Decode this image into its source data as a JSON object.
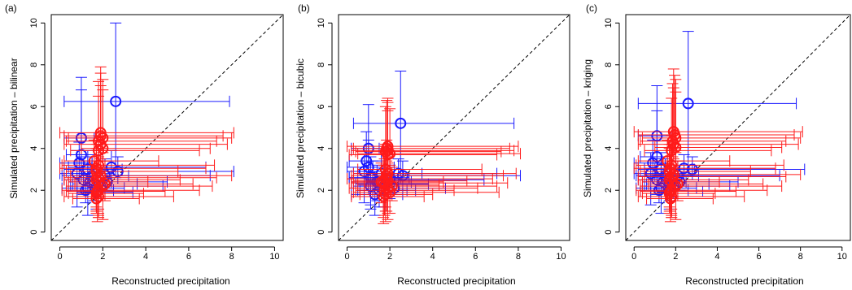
{
  "colors": {
    "blue": "#1a1aff",
    "red": "#ff1a1a",
    "axis": "#000000",
    "identity": "#000000"
  },
  "chart_data": [
    {
      "type": "scatter",
      "panel_label": "(a)",
      "xlabel": "Reconstructed precipitation",
      "ylabel": "Simulated precipitation – bilinear",
      "xlim": [
        0,
        10
      ],
      "ylim": [
        0,
        10
      ],
      "xticks": [
        "0",
        "2",
        "4",
        "6",
        "8",
        "10"
      ],
      "yticks": [
        "0",
        "2",
        "4",
        "6",
        "8",
        "10"
      ],
      "identity_line": true,
      "series": [
        {
          "color": "blue",
          "points": [
            [
              2.6,
              6.25,
              0.2,
              7.9,
              2.6,
              10.0
            ],
            [
              1.0,
              4.5,
              0.2,
              1.6,
              3.6,
              6.8
            ],
            [
              1.0,
              3.7,
              0.3,
              2.0,
              2.8,
              7.4
            ],
            [
              0.9,
              3.3,
              0.0,
              1.5,
              2.6,
              4.3
            ],
            [
              2.4,
              3.1,
              0.4,
              6.8,
              2.3,
              3.9
            ],
            [
              2.7,
              2.9,
              1.0,
              8.1,
              2.3,
              3.6
            ],
            [
              1.3,
              3.0,
              0.2,
              2.9,
              2.1,
              3.9
            ],
            [
              1.5,
              2.7,
              0.1,
              3.2,
              2.0,
              3.6
            ],
            [
              1.1,
              2.5,
              0.2,
              2.2,
              1.8,
              3.3
            ],
            [
              1.4,
              2.4,
              0.4,
              2.4,
              1.9,
              3.0
            ],
            [
              1.6,
              2.3,
              0.6,
              3.6,
              1.5,
              3.1
            ],
            [
              2.2,
              2.4,
              1.1,
              5.0,
              2.0,
              2.8
            ],
            [
              1.9,
              2.2,
              0.5,
              4.8,
              1.6,
              2.7
            ],
            [
              1.2,
              2.0,
              0.3,
              2.5,
              1.4,
              2.6
            ],
            [
              0.8,
              2.8,
              0.0,
              2.0,
              1.2,
              3.9
            ],
            [
              1.7,
              1.9,
              0.8,
              3.4,
              1.1,
              2.6
            ],
            [
              2.1,
              2.7,
              1.0,
              7.0,
              1.6,
              3.5
            ],
            [
              1.3,
              2.1,
              0.1,
              3.0,
              0.8,
              3.4
            ]
          ]
        },
        {
          "color": "red",
          "points": [
            [
              1.9,
              4.75,
              0.0,
              8.1,
              4.3,
              7.9
            ],
            [
              1.9,
              4.6,
              0.2,
              7.6,
              4.0,
              7.6
            ],
            [
              2.0,
              4.5,
              0.4,
              8.0,
              3.9,
              7.3
            ],
            [
              1.8,
              4.35,
              0.3,
              7.3,
              3.6,
              7.2
            ],
            [
              1.9,
              4.2,
              0.2,
              7.8,
              3.5,
              7.0
            ],
            [
              2.0,
              4.0,
              1.0,
              7.0,
              3.4,
              6.8
            ],
            [
              1.8,
              3.9,
              0.5,
              6.5,
              3.2,
              6.5
            ],
            [
              1.8,
              3.2,
              0.1,
              7.2,
              1.1,
              4.6
            ],
            [
              1.7,
              3.05,
              0.0,
              6.8,
              1.0,
              4.4
            ],
            [
              1.7,
              2.9,
              0.3,
              5.5,
              1.2,
              4.2
            ],
            [
              1.8,
              2.6,
              0.2,
              7.3,
              0.8,
              4.2
            ],
            [
              1.7,
              2.5,
              0.2,
              5.6,
              1.0,
              4.0
            ],
            [
              1.8,
              2.4,
              0.4,
              4.1,
              0.7,
              3.9
            ],
            [
              2.0,
              2.2,
              0.3,
              7.1,
              0.6,
              3.8
            ],
            [
              1.8,
              2.0,
              0.1,
              6.5,
              0.7,
              3.9
            ],
            [
              1.7,
              1.85,
              0.4,
              3.9,
              0.9,
              3.1
            ],
            [
              1.8,
              1.7,
              0.2,
              5.3,
              0.9,
              2.8
            ],
            [
              1.7,
              1.6,
              0.6,
              3.7,
              1.0,
              2.5
            ],
            [
              1.9,
              2.7,
              0.5,
              8.0,
              1.7,
              3.9
            ],
            [
              2.1,
              2.3,
              0.7,
              6.2,
              1.5,
              3.4
            ],
            [
              1.6,
              3.4,
              0.2,
              4.6,
              2.1,
              4.4
            ],
            [
              1.75,
              1.95,
              0.3,
              4.9,
              0.5,
              3.6
            ]
          ]
        }
      ]
    },
    {
      "type": "scatter",
      "panel_label": "(b)",
      "xlabel": "Reconstructed precipitation",
      "ylabel": "Simulated precipitation – bicubic",
      "xlim": [
        0,
        10
      ],
      "ylim": [
        0,
        10
      ],
      "xticks": [
        "0",
        "2",
        "4",
        "6",
        "8",
        "10"
      ],
      "yticks": [
        "0",
        "2",
        "4",
        "6",
        "8",
        "10"
      ],
      "identity_line": true,
      "series": [
        {
          "color": "blue",
          "points": [
            [
              2.5,
              5.2,
              0.3,
              7.8,
              2.7,
              7.7
            ],
            [
              1.0,
              4.0,
              0.2,
              1.5,
              2.4,
              6.1
            ],
            [
              0.9,
              3.4,
              0.1,
              1.8,
              2.2,
              4.8
            ],
            [
              1.0,
              3.1,
              0.0,
              2.2,
              2.0,
              4.4
            ],
            [
              1.6,
              2.8,
              0.3,
              3.5,
              1.8,
              4.0
            ],
            [
              2.6,
              2.7,
              0.8,
              8.1,
              2.0,
              3.4
            ],
            [
              2.4,
              2.8,
              0.5,
              7.0,
              2.0,
              3.5
            ],
            [
              1.2,
              2.6,
              0.1,
              2.9,
              1.7,
              3.4
            ],
            [
              1.4,
              2.4,
              0.2,
              3.0,
              1.5,
              3.2
            ],
            [
              1.1,
              2.2,
              0.3,
              2.4,
              1.3,
              3.0
            ],
            [
              2.2,
              2.1,
              1.0,
              4.6,
              1.7,
              2.6
            ],
            [
              1.8,
              2.3,
              0.4,
              3.8,
              1.0,
              3.2
            ],
            [
              1.5,
              2.0,
              0.6,
              2.8,
              1.2,
              2.6
            ],
            [
              1.3,
              1.8,
              0.2,
              2.6,
              0.8,
              2.9
            ],
            [
              2.0,
              2.5,
              0.9,
              6.4,
              1.6,
              3.2
            ],
            [
              0.8,
              2.9,
              0.0,
              1.9,
              1.4,
              3.7
            ],
            [
              1.7,
              2.0,
              0.5,
              3.2,
              1.2,
              2.8
            ],
            [
              1.1,
              2.6,
              0.1,
              2.5,
              1.1,
              3.6
            ]
          ]
        },
        {
          "color": "red",
          "points": [
            [
              1.9,
              4.1,
              0.0,
              8.0,
              3.6,
              6.4
            ],
            [
              1.85,
              4.0,
              0.3,
              7.6,
              3.4,
              6.3
            ],
            [
              1.9,
              3.9,
              0.2,
              7.8,
              3.3,
              6.2
            ],
            [
              1.8,
              3.85,
              0.4,
              7.2,
              3.2,
              6.0
            ],
            [
              2.0,
              3.75,
              0.5,
              8.1,
              3.1,
              5.9
            ],
            [
              1.9,
              3.7,
              0.1,
              7.0,
              3.0,
              5.8
            ],
            [
              1.85,
              2.7,
              0.2,
              7.3,
              1.0,
              4.4
            ],
            [
              1.8,
              2.55,
              0.0,
              6.8,
              1.2,
              4.1
            ],
            [
              1.9,
              2.45,
              0.3,
              5.6,
              0.9,
              4.0
            ],
            [
              1.7,
              2.35,
              0.2,
              7.5,
              0.7,
              3.9
            ],
            [
              1.8,
              2.25,
              0.5,
              4.3,
              1.0,
              3.8
            ],
            [
              1.9,
              2.1,
              0.1,
              6.1,
              0.6,
              3.7
            ],
            [
              1.75,
              2.0,
              0.4,
              5.0,
              0.8,
              3.5
            ],
            [
              2.0,
              1.9,
              0.3,
              7.1,
              0.9,
              3.2
            ],
            [
              1.8,
              1.8,
              0.6,
              4.0,
              0.5,
              3.0
            ],
            [
              1.7,
              1.7,
              0.2,
              3.6,
              0.4,
              3.2
            ],
            [
              1.9,
              2.8,
              0.3,
              7.9,
              1.9,
              3.9
            ],
            [
              1.8,
              3.0,
              0.5,
              6.3,
              2.0,
              4.2
            ],
            [
              1.6,
              2.4,
              0.2,
              4.5,
              1.4,
              3.3
            ],
            [
              2.1,
              2.2,
              0.8,
              7.0,
              1.5,
              3.1
            ]
          ]
        }
      ]
    },
    {
      "type": "scatter",
      "panel_label": "(c)",
      "xlabel": "Reconstructed precipitation",
      "ylabel": "Simulated precipitation – kriging",
      "xlim": [
        0,
        10
      ],
      "ylim": [
        0,
        10
      ],
      "xticks": [
        "0",
        "2",
        "4",
        "6",
        "8",
        "10"
      ],
      "yticks": [
        "0",
        "2",
        "4",
        "6",
        "8",
        "10"
      ],
      "identity_line": true,
      "series": [
        {
          "color": "blue",
          "points": [
            [
              2.6,
              6.15,
              0.2,
              7.8,
              2.7,
              9.6
            ],
            [
              1.1,
              4.6,
              0.2,
              1.8,
              3.5,
              7.0
            ],
            [
              1.1,
              3.6,
              0.3,
              2.0,
              2.7,
              5.8
            ],
            [
              0.9,
              3.3,
              0.0,
              1.6,
              2.5,
              4.4
            ],
            [
              2.4,
              3.05,
              0.5,
              6.8,
              2.4,
              3.7
            ],
            [
              2.8,
              3.0,
              1.0,
              8.2,
              2.5,
              3.6
            ],
            [
              1.3,
              3.0,
              0.2,
              2.9,
              2.1,
              3.8
            ],
            [
              1.5,
              2.7,
              0.1,
              3.1,
              2.0,
              3.5
            ],
            [
              1.1,
              2.5,
              0.2,
              2.3,
              1.8,
              3.3
            ],
            [
              1.4,
              2.4,
              0.4,
              2.5,
              1.9,
              3.0
            ],
            [
              1.7,
              2.3,
              0.6,
              3.6,
              1.5,
              3.1
            ],
            [
              2.2,
              2.4,
              1.1,
              5.0,
              2.0,
              2.8
            ],
            [
              1.9,
              2.2,
              0.5,
              4.6,
              1.6,
              2.7
            ],
            [
              1.2,
              2.0,
              0.3,
              2.6,
              1.4,
              2.6
            ],
            [
              0.8,
              2.8,
              0.0,
              2.1,
              1.3,
              3.8
            ],
            [
              1.7,
              1.95,
              0.8,
              3.3,
              1.1,
              2.6
            ],
            [
              2.1,
              2.7,
              1.0,
              7.0,
              1.6,
              3.4
            ],
            [
              1.3,
              2.1,
              0.1,
              3.0,
              0.9,
              3.3
            ]
          ]
        },
        {
          "color": "red",
          "points": [
            [
              1.9,
              4.8,
              0.0,
              8.1,
              4.2,
              7.8
            ],
            [
              1.95,
              4.65,
              0.2,
              7.7,
              4.0,
              7.5
            ],
            [
              2.0,
              4.5,
              0.4,
              8.0,
              3.9,
              7.3
            ],
            [
              1.85,
              4.35,
              0.3,
              7.3,
              3.6,
              7.1
            ],
            [
              1.9,
              4.2,
              0.2,
              7.9,
              3.5,
              6.9
            ],
            [
              2.0,
              4.05,
              1.0,
              7.1,
              3.4,
              6.7
            ],
            [
              1.8,
              3.9,
              0.5,
              6.6,
              3.2,
              6.4
            ],
            [
              1.8,
              3.2,
              0.1,
              7.2,
              1.1,
              4.6
            ],
            [
              1.75,
              3.05,
              0.0,
              6.8,
              1.0,
              4.4
            ],
            [
              1.7,
              2.9,
              0.3,
              5.6,
              1.2,
              4.2
            ],
            [
              1.8,
              2.65,
              0.2,
              7.3,
              0.8,
              4.2
            ],
            [
              1.7,
              2.5,
              0.2,
              5.5,
              1.0,
              4.0
            ],
            [
              1.8,
              2.4,
              0.4,
              4.1,
              0.7,
              3.9
            ],
            [
              2.0,
              2.2,
              0.3,
              7.1,
              0.6,
              3.8
            ],
            [
              1.8,
              2.0,
              0.1,
              6.4,
              0.7,
              3.9
            ],
            [
              1.7,
              1.85,
              0.4,
              3.9,
              0.9,
              3.1
            ],
            [
              1.8,
              1.7,
              0.2,
              5.3,
              0.9,
              2.8
            ],
            [
              1.75,
              1.6,
              0.6,
              3.8,
              1.0,
              2.5
            ],
            [
              1.9,
              2.75,
              0.5,
              8.0,
              1.7,
              3.9
            ],
            [
              2.1,
              2.3,
              0.7,
              6.2,
              1.5,
              3.4
            ],
            [
              1.6,
              3.4,
              0.2,
              4.6,
              2.1,
              4.4
            ],
            [
              1.75,
              1.95,
              0.3,
              4.9,
              0.5,
              3.6
            ]
          ]
        }
      ]
    }
  ]
}
